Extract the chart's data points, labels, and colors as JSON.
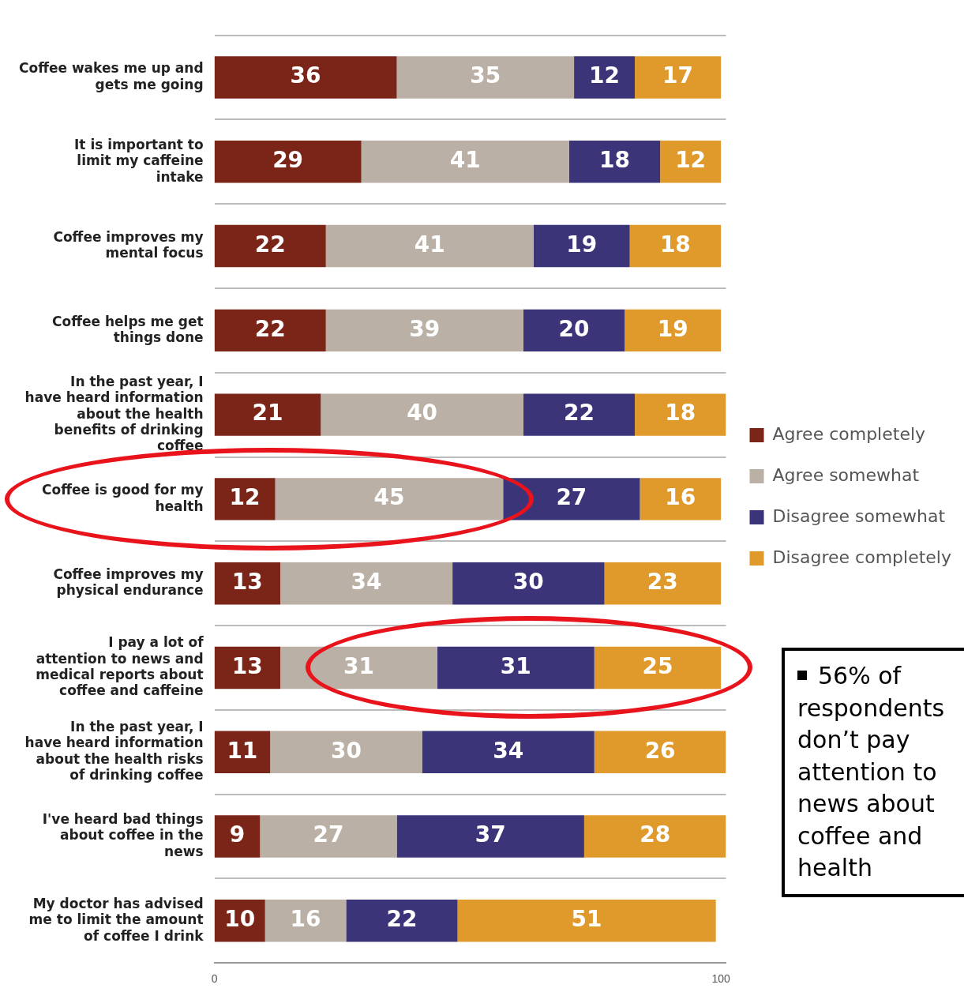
{
  "chart_data": {
    "type": "bar",
    "orientation": "horizontal",
    "stacked": true,
    "categories": [
      "Coffee wakes me up and gets me going",
      "It is important to limit my caffeine intake",
      "Coffee improves my mental focus",
      "Coffee helps me get things done",
      "In the past year, I have heard information about the health benefits of drinking coffee",
      "Coffee is good for my health",
      "Coffee improves my physical endurance",
      "I pay a lot of attention to news and medical reports about coffee and caffeine",
      "In the past year, I have heard information about the health risks of drinking coffee",
      "I've heard bad things about coffee in the news",
      "My doctor has advised me to limit the amount of coffee I drink"
    ],
    "series": [
      {
        "name": "Agree completely",
        "color": "#7a2518",
        "values": [
          36,
          29,
          22,
          22,
          21,
          12,
          13,
          13,
          11,
          9,
          10
        ]
      },
      {
        "name": "Agree somewhat",
        "color": "#bab0a5",
        "values": [
          35,
          41,
          41,
          39,
          40,
          45,
          34,
          31,
          30,
          27,
          16
        ]
      },
      {
        "name": "Disagree somewhat",
        "color": "#3b3479",
        "values": [
          12,
          18,
          19,
          20,
          22,
          27,
          30,
          31,
          34,
          37,
          22
        ]
      },
      {
        "name": "Disagree completely",
        "color": "#e09a2c",
        "values": [
          17,
          12,
          18,
          19,
          18,
          16,
          23,
          25,
          26,
          28,
          51
        ]
      }
    ],
    "xlim": [
      0,
      101
    ],
    "xticks": [
      0,
      100
    ],
    "grid": "y",
    "legend": "right",
    "data_labels": true,
    "annotations": [
      "56% of respondents don’t pay attention to news about coffee and health"
    ]
  }
}
